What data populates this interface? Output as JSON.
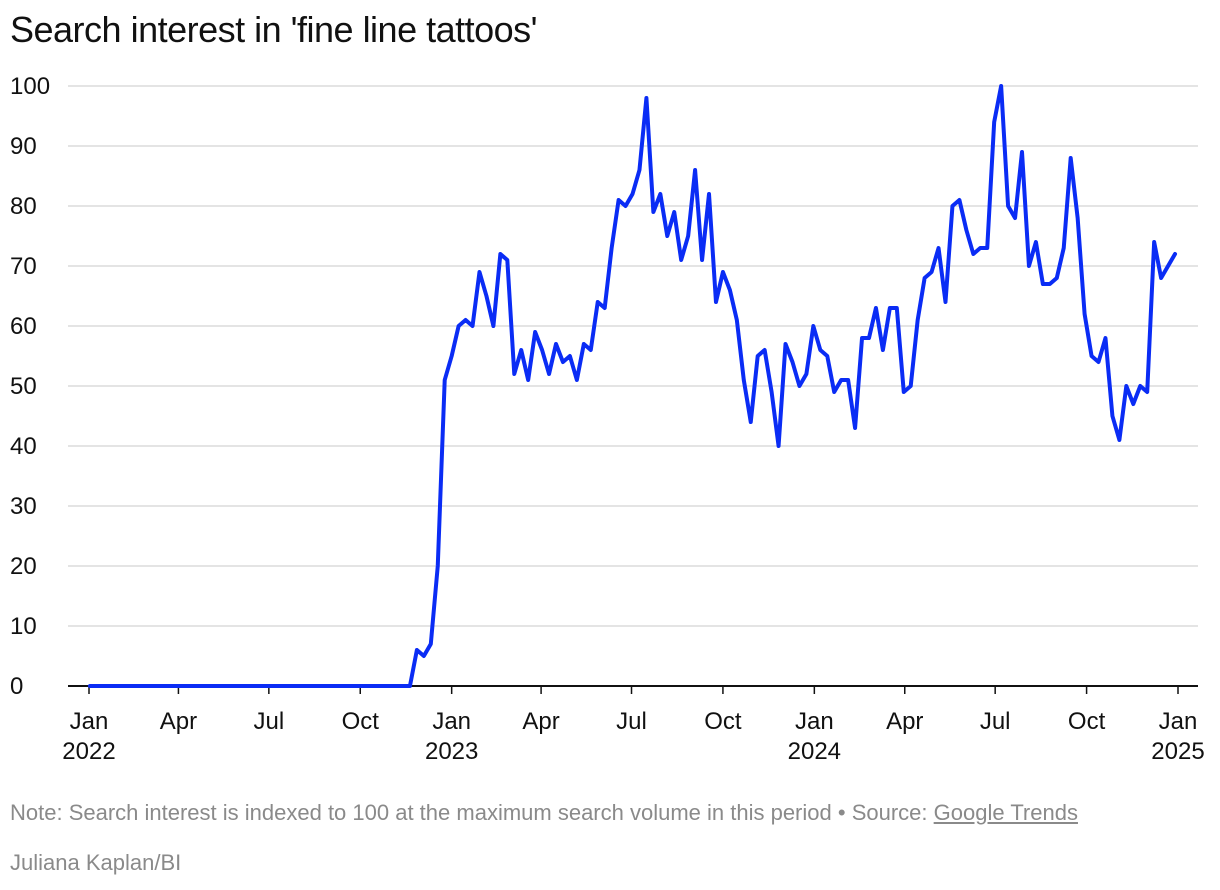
{
  "chart_data": {
    "type": "line",
    "title": "Search interest in 'fine line tattoos'",
    "xlabel": "",
    "ylabel": "",
    "ylim": [
      0,
      100
    ],
    "yticks": [
      0,
      10,
      20,
      30,
      40,
      50,
      60,
      70,
      80,
      90,
      100
    ],
    "x_start": "2022-01-02",
    "x_interval": "weekly",
    "xlim": [
      "2022-01-01",
      "2025-01-01"
    ],
    "xticks": [
      {
        "date": "2022-01-01",
        "label": "Jan",
        "year": "2022"
      },
      {
        "date": "2022-04-01",
        "label": "Apr",
        "year": ""
      },
      {
        "date": "2022-07-01",
        "label": "Jul",
        "year": ""
      },
      {
        "date": "2022-10-01",
        "label": "Oct",
        "year": ""
      },
      {
        "date": "2023-01-01",
        "label": "Jan",
        "year": "2023"
      },
      {
        "date": "2023-04-01",
        "label": "Apr",
        "year": ""
      },
      {
        "date": "2023-07-01",
        "label": "Jul",
        "year": ""
      },
      {
        "date": "2023-10-01",
        "label": "Oct",
        "year": ""
      },
      {
        "date": "2024-01-01",
        "label": "Jan",
        "year": "2024"
      },
      {
        "date": "2024-04-01",
        "label": "Apr",
        "year": ""
      },
      {
        "date": "2024-07-01",
        "label": "Jul",
        "year": ""
      },
      {
        "date": "2024-10-01",
        "label": "Oct",
        "year": ""
      },
      {
        "date": "2025-01-01",
        "label": "Jan",
        "year": "2025"
      }
    ],
    "grid": true,
    "line_color": "#0a2cf5",
    "series": [
      {
        "values": [
          0,
          0,
          0,
          0,
          0,
          0,
          0,
          0,
          0,
          0,
          0,
          0,
          0,
          0,
          0,
          0,
          0,
          0,
          0,
          0,
          0,
          0,
          0,
          0,
          0,
          0,
          0,
          0,
          0,
          0,
          0,
          0,
          0,
          0,
          0,
          0,
          0,
          0,
          0,
          0,
          0,
          0,
          0,
          0,
          0,
          0,
          0,
          6,
          5,
          7,
          20,
          51,
          55,
          60,
          61,
          60,
          69,
          65,
          60,
          72,
          71,
          52,
          56,
          51,
          59,
          56,
          52,
          57,
          54,
          55,
          51,
          57,
          56,
          64,
          63,
          73,
          81,
          80,
          82,
          86,
          98,
          79,
          82,
          75,
          79,
          71,
          75,
          86,
          71,
          82,
          64,
          69,
          66,
          61,
          51,
          44,
          55,
          56,
          49,
          40,
          57,
          54,
          50,
          52,
          60,
          56,
          55,
          49,
          51,
          51,
          43,
          58,
          58,
          63,
          56,
          63,
          63,
          49,
          50,
          61,
          68,
          69,
          73,
          64,
          80,
          81,
          76,
          72,
          73,
          73,
          94,
          100,
          80,
          78,
          89,
          70,
          74,
          67,
          67,
          68,
          73,
          88,
          78,
          62,
          55,
          54,
          58,
          45,
          41,
          50,
          47,
          50,
          49,
          74,
          68,
          70,
          72
        ]
      }
    ]
  },
  "footnote": {
    "note": "Note: Search interest is indexed to 100 at the maximum search volume in this period",
    "separator": "•",
    "source_prefix": "Source:",
    "source_name": "Google Trends"
  },
  "credit": "Juliana Kaplan/BI"
}
